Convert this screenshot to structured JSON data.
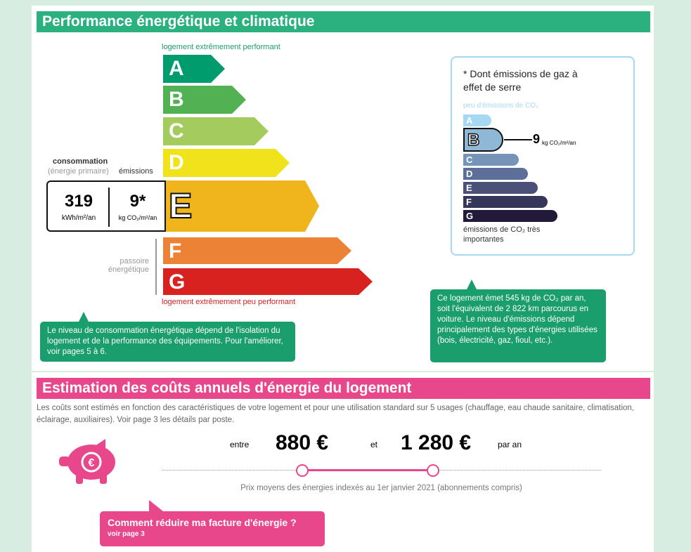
{
  "energy": {
    "title": "Performance énergétique et climatique",
    "top_label": "logement extrêmement performant",
    "bottom_label": "logement extrêmement peu performant",
    "classes": [
      "A",
      "B",
      "C",
      "D",
      "E",
      "F",
      "G"
    ],
    "current_class": "E",
    "colors": [
      "#009c6d",
      "#52b153",
      "#a3cb5d",
      "#f0e31c",
      "#f0b41c",
      "#eb8235",
      "#d7221f"
    ],
    "consumption_label": "consommation",
    "consumption_sub": "(énergie primaire)",
    "emissions_label": "émissions",
    "consumption_value": "319",
    "consumption_unit": "kWh/m²/an",
    "emissions_value": "9*",
    "emissions_unit": "kg CO₂/m²/an",
    "passoire": "passoire énergétique",
    "note_left": "Le niveau de consommation énergétique dépend de l'isolation du logement et de la performance des équipements. Pour l'améliorer, voir pages 5 à 6."
  },
  "ges": {
    "title": "* Dont émissions de gaz à effet de serre",
    "top_label": "peu d'émissions de CO₂",
    "bottom_label": "émissions de CO₂ très importantes",
    "classes": [
      "A",
      "B",
      "C",
      "D",
      "E",
      "F",
      "G"
    ],
    "current_class": "B",
    "value": "9",
    "unit": "kg CO₂/m²/an",
    "colors": [
      "#a5d8f3",
      "#8fb7d6",
      "#7694b8",
      "#5d6f99",
      "#4a5078",
      "#35365a",
      "#231a3a"
    ],
    "note": "Ce logement émet 545 kg de CO₂ par an, soit l'équivalent de 2 822 km parcourus en voiture. Le niveau d'émissions dépend principalement des types d'énergies utilisées (bois, électricité, gaz, fioul, etc.)."
  },
  "costs": {
    "title": "Estimation des coûts annuels d'énergie du logement",
    "description": "Les coûts sont estimés en fonction des caractéristiques de votre logement et pour une utilisation standard sur 5 usages (chauffage, eau chaude sanitaire, climatisation, éclairage, auxiliaires). Voir page 3 les détails par poste.",
    "between": "entre",
    "min": "880 €",
    "and": "et",
    "max": "1 280 €",
    "per_year": "par an",
    "price_note": "Prix moyens des énergies indexés au 1er janvier 2021 (abonnements compris)",
    "reduce_title": "Comment réduire ma facture d'énergie ?",
    "reduce_link": "voir page 3",
    "accent": "#e8478b"
  }
}
